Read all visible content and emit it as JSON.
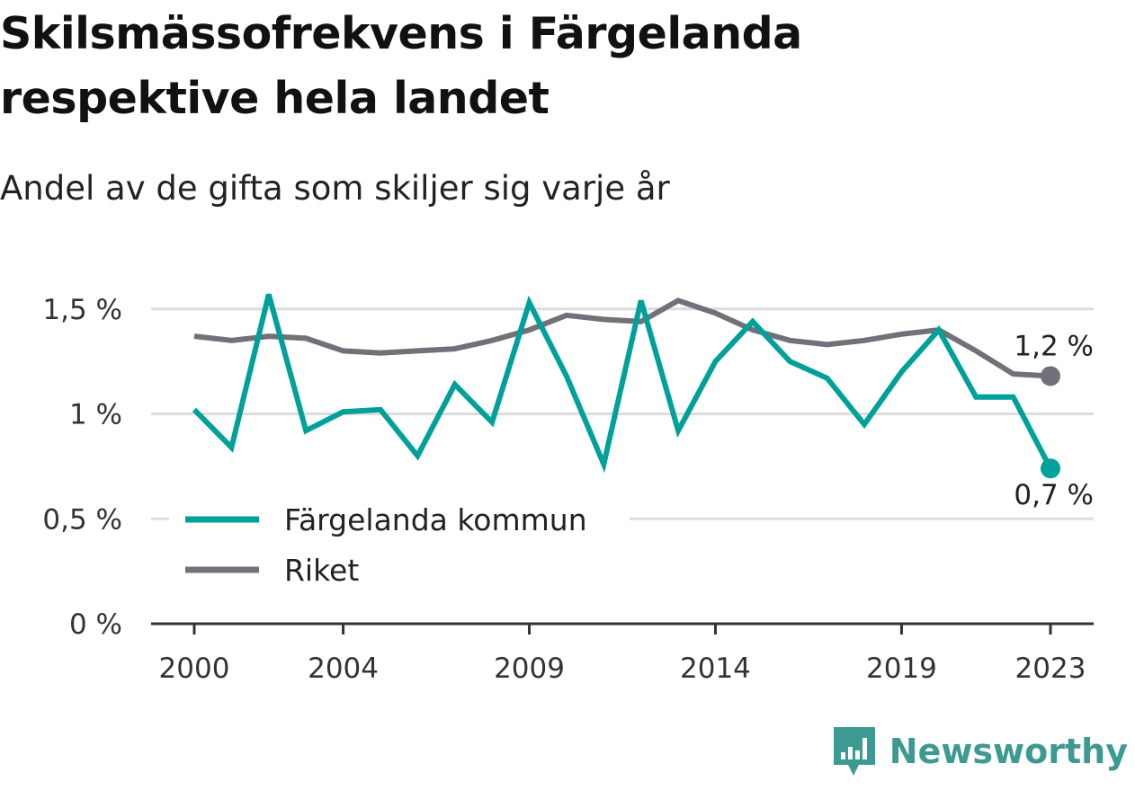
{
  "header": {
    "title": "Skilsmässofrekvens i Färgelanda respektive hela landet",
    "subtitle": "Andel av de gifta som skiljer sig varje år"
  },
  "chart_data": {
    "type": "line",
    "x": [
      2000,
      2001,
      2002,
      2003,
      2004,
      2005,
      2006,
      2007,
      2008,
      2009,
      2010,
      2011,
      2012,
      2013,
      2014,
      2015,
      2016,
      2017,
      2018,
      2019,
      2020,
      2021,
      2022,
      2023
    ],
    "x_ticks": [
      2000,
      2004,
      2009,
      2014,
      2019,
      2023
    ],
    "x_tick_labels": [
      "2000",
      "2004",
      "2009",
      "2014",
      "2019",
      "2023"
    ],
    "y_ticks": [
      0,
      0.5,
      1,
      1.5
    ],
    "y_tick_labels": [
      "0 %",
      "0,5 %",
      "1 %",
      "1,5 %"
    ],
    "ylim": [
      0,
      1.6
    ],
    "grid": true,
    "legend_position": "lower-left",
    "series": [
      {
        "name": "Färgelanda kommun",
        "color": "#00a19a",
        "values": [
          1.02,
          0.84,
          1.57,
          0.92,
          1.01,
          1.02,
          0.8,
          1.14,
          0.96,
          1.53,
          1.18,
          0.76,
          1.54,
          0.92,
          1.25,
          1.44,
          1.25,
          1.17,
          0.95,
          1.2,
          1.4,
          1.08,
          1.08,
          0.74
        ],
        "end_label": "0,7 %"
      },
      {
        "name": "Riket",
        "color": "#727078",
        "values": [
          1.37,
          1.35,
          1.37,
          1.36,
          1.3,
          1.29,
          1.3,
          1.31,
          1.35,
          1.4,
          1.47,
          1.45,
          1.44,
          1.54,
          1.48,
          1.4,
          1.35,
          1.33,
          1.35,
          1.38,
          1.4,
          1.3,
          1.19,
          1.18
        ],
        "end_label": "1,2 %"
      }
    ]
  },
  "branding": {
    "logo_text": "Newsworthy",
    "logo_color": "#3c9a92"
  }
}
